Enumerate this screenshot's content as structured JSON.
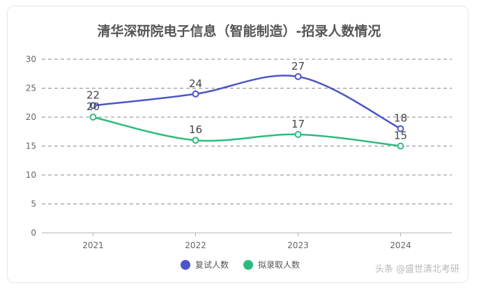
{
  "chart_data": {
    "type": "line",
    "title": "清华深研院电子信息（智能制造）-招录人数情况",
    "categories": [
      "2021",
      "2022",
      "2023",
      "2024"
    ],
    "ylim": [
      0,
      30
    ],
    "yticks": [
      0,
      5,
      10,
      15,
      20,
      25,
      30
    ],
    "grid": true,
    "legend_position": "bottom",
    "series": [
      {
        "name": "复试人数",
        "values": [
          22,
          24,
          27,
          18
        ],
        "color": "#4b56c8"
      },
      {
        "name": "拟录取人数",
        "values": [
          20,
          16,
          17,
          15
        ],
        "color": "#2dbb7d"
      }
    ]
  },
  "watermark": "头条 @盛世清北考研"
}
